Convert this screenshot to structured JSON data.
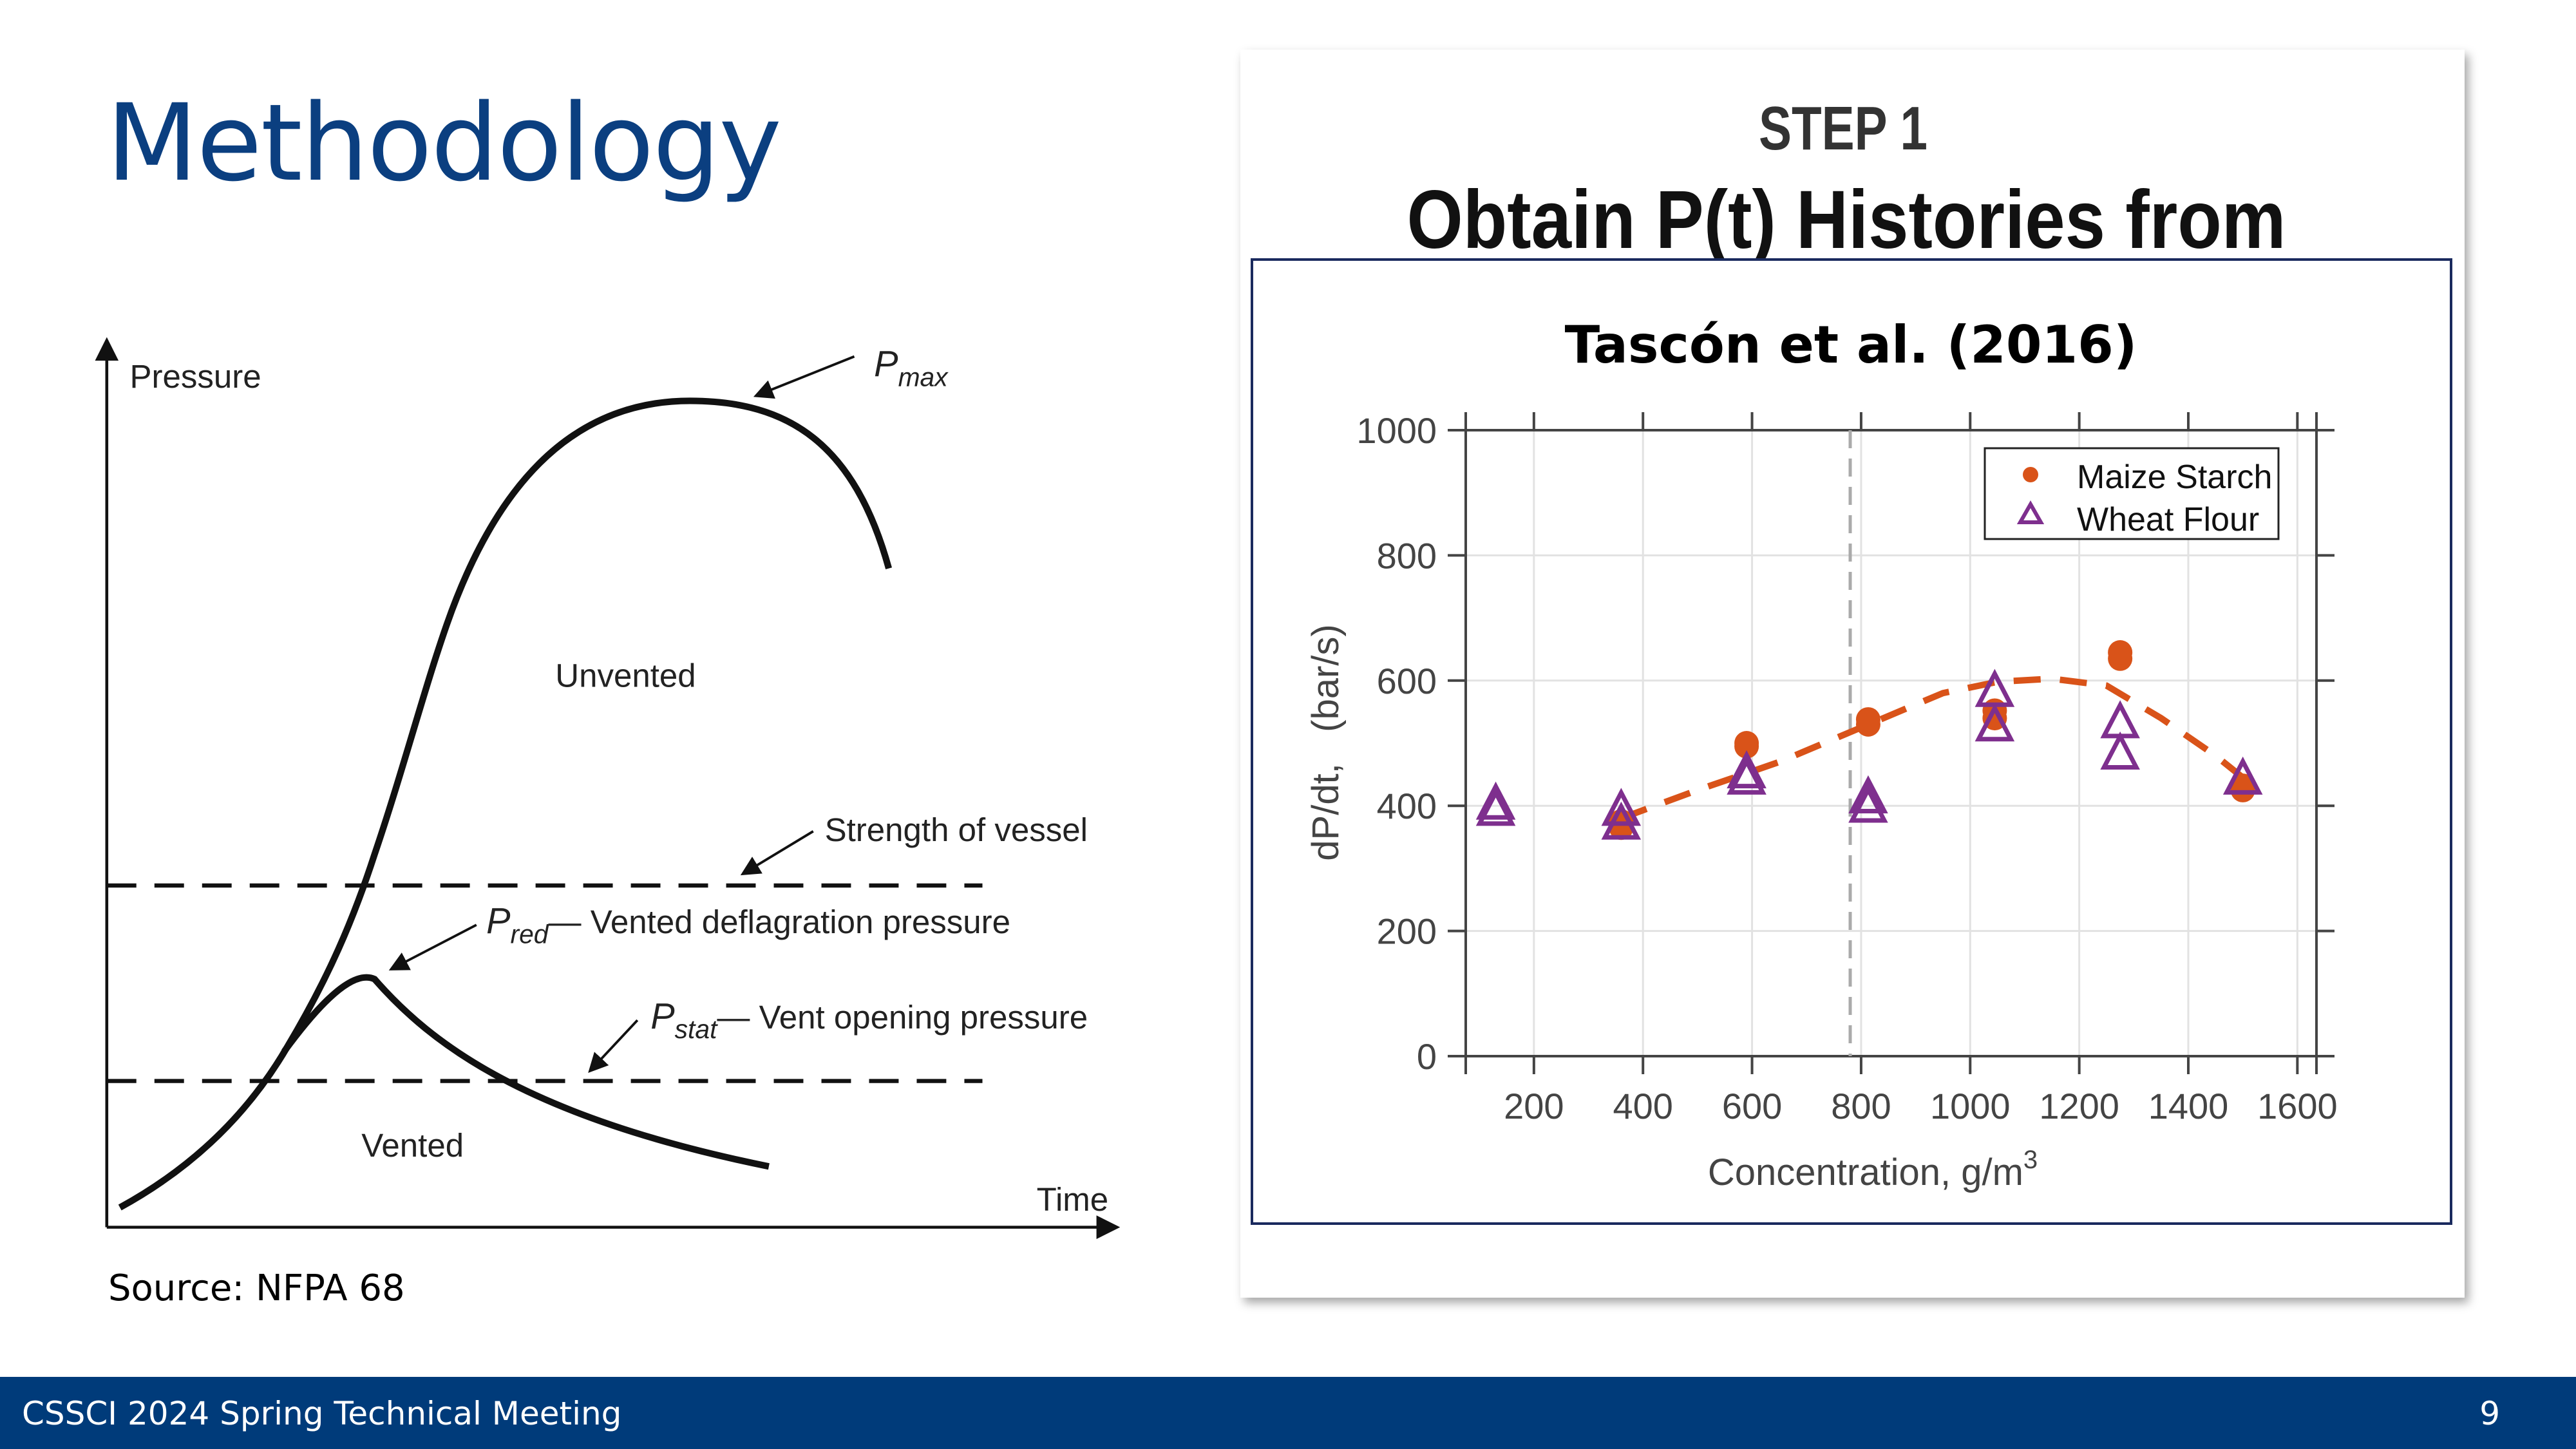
{
  "slide": {
    "title": "Methodology",
    "source": "Source: NFPA 68",
    "footer": "CSSCI 2024 Spring Technical Meeting",
    "page_number": "9",
    "title_color": "#0b3f80",
    "footer_color": "#003b7a"
  },
  "diagram": {
    "y_label": "Pressure",
    "x_label": "Time",
    "pmax_p": "P",
    "pmax_sub": "max",
    "unvented": "Unvented",
    "vented": "Vented",
    "strength": "Strength of vessel",
    "pred_p": "P",
    "pred_sub": "red",
    "pred_text": "— Vented deflagration pressure",
    "pstat_p": "P",
    "pstat_sub": "stat",
    "pstat_text": "— Vent opening pressure"
  },
  "panel": {
    "step": "STEP 1",
    "heading": "Obtain P(t) Histories from",
    "border_color": "#1a2a5e"
  },
  "chart_data": {
    "type": "scatter",
    "title": "Tascón et al. (2016)",
    "xlabel": "Concentration, g/m",
    "xlabel_sup": "3",
    "ylabel": "dP/dt,   (bar/s)",
    "xlim": [
      75,
      1635
    ],
    "ylim": [
      0,
      1000
    ],
    "xticks": [
      200,
      400,
      600,
      800,
      1000,
      1200,
      1400,
      1600
    ],
    "yticks": [
      0,
      200,
      400,
      600,
      800,
      1000
    ],
    "grid": true,
    "legend_placement": "top-right",
    "reference_line_x": 780,
    "series": [
      {
        "name": "Maize Starch",
        "marker": "filled-circle",
        "color": "#d95319",
        "points": [
          [
            360,
            365
          ],
          [
            360,
            375
          ],
          [
            590,
            495
          ],
          [
            590,
            500
          ],
          [
            813,
            530
          ],
          [
            813,
            538
          ],
          [
            1045,
            540
          ],
          [
            1045,
            552
          ],
          [
            1275,
            635
          ],
          [
            1275,
            645
          ],
          [
            1500,
            425
          ],
          [
            1500,
            432
          ]
        ]
      },
      {
        "name": "Wheat Flour",
        "marker": "open-triangle",
        "color": "#7e2f8e",
        "points": [
          [
            130,
            400
          ],
          [
            130,
            390
          ],
          [
            360,
            390
          ],
          [
            360,
            368
          ],
          [
            590,
            450
          ],
          [
            590,
            440
          ],
          [
            813,
            410
          ],
          [
            813,
            395
          ],
          [
            1045,
            580
          ],
          [
            1045,
            525
          ],
          [
            1275,
            530
          ],
          [
            1275,
            480
          ],
          [
            1500,
            440
          ]
        ]
      }
    ],
    "fit": {
      "style": "dashed",
      "color": "#d95319",
      "points": [
        [
          360,
          380
        ],
        [
          500,
          425
        ],
        [
          650,
          470
        ],
        [
          800,
          525
        ],
        [
          950,
          580
        ],
        [
          1050,
          598
        ],
        [
          1150,
          603
        ],
        [
          1250,
          592
        ],
        [
          1350,
          540
        ],
        [
          1450,
          480
        ],
        [
          1500,
          445
        ]
      ]
    }
  }
}
